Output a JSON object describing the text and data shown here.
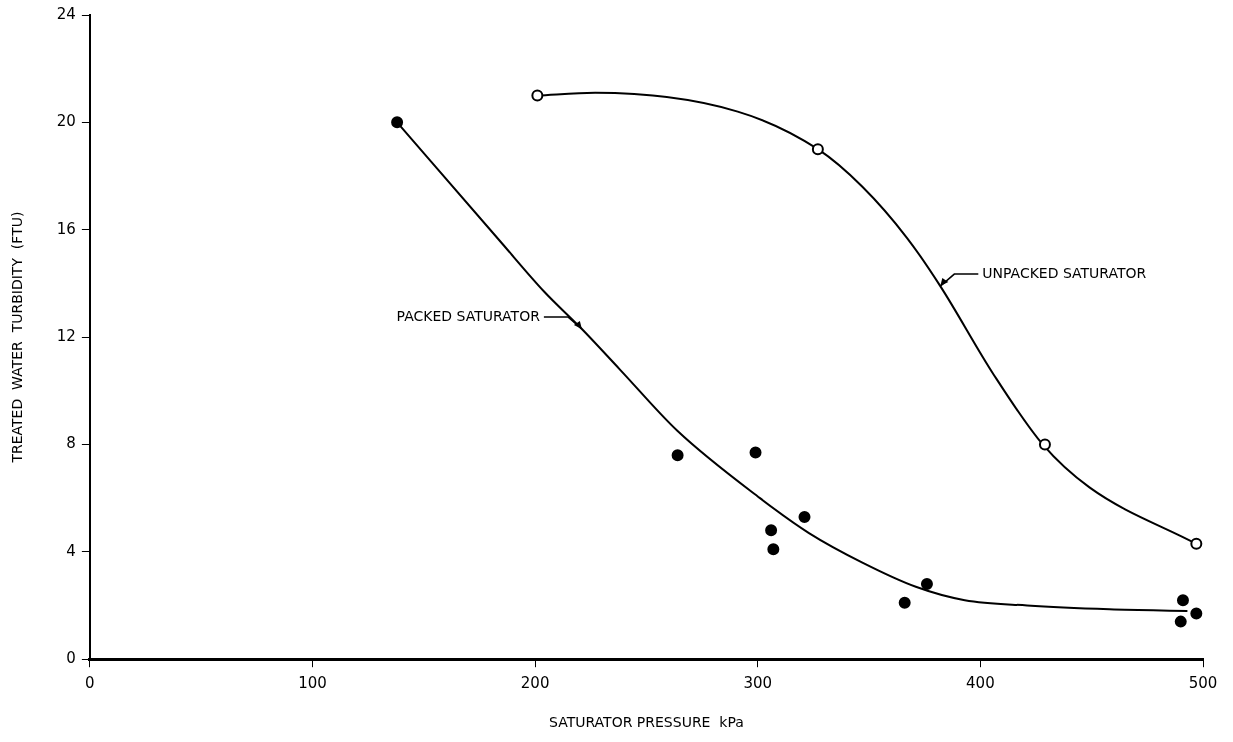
{
  "chart_data": {
    "type": "scatter",
    "xlabel": "SATURATOR PRESSURE  kPa",
    "ylabel": "TREATED  WATER  TURBIDITY  (FTU)",
    "xlim": [
      0,
      500
    ],
    "xticks": [
      0,
      100,
      200,
      300,
      400,
      500
    ],
    "ylim": [
      0,
      24
    ],
    "yticks": [
      0,
      4,
      8,
      12,
      16,
      20,
      24
    ],
    "grid": false,
    "legend": false,
    "series": [
      {
        "marker": "circle",
        "color": "#000000",
        "x": [
          138,
          264,
          299,
          306,
          307,
          321,
          366,
          376,
          491,
          490,
          497
        ],
        "values": [
          20,
          7.6,
          7.7,
          4.8,
          4.1,
          5.3,
          2.1,
          2.8,
          2.2,
          1.4,
          1.7
        ]
      },
      {
        "marker": "circle-open",
        "color": "#000000",
        "x": [
          201,
          327,
          429,
          497
        ],
        "values": [
          21,
          19,
          8,
          4.3
        ]
      },
      {
        "type": "line",
        "marker": "none",
        "color": "#000000",
        "x": [
          138,
          184,
          204,
          221,
          238,
          264,
          301,
          323,
          347,
          371,
          393,
          421,
          458,
          493
        ],
        "values": [
          20,
          15.6,
          13.7,
          12.3,
          10.8,
          8.5,
          6,
          4.7,
          3.6,
          2.7,
          2.2,
          2,
          1.86,
          1.8
        ]
      },
      {
        "type": "line",
        "marker": "none",
        "color": "#000000",
        "x": [
          201,
          227,
          291,
          327,
          347,
          367,
          382,
          406,
          428,
          449,
          497
        ],
        "values": [
          21,
          21.1,
          20.4,
          19,
          17.6,
          15.7,
          13.9,
          10.6,
          8,
          6.4,
          4.3
        ]
      }
    ],
    "annotations": [
      {
        "text": "PACKED SATURATOR",
        "x": 221,
        "y": 12.3
      },
      {
        "text": "UNPACKED SATURATOR",
        "x": 382,
        "y": 13.9
      }
    ]
  }
}
